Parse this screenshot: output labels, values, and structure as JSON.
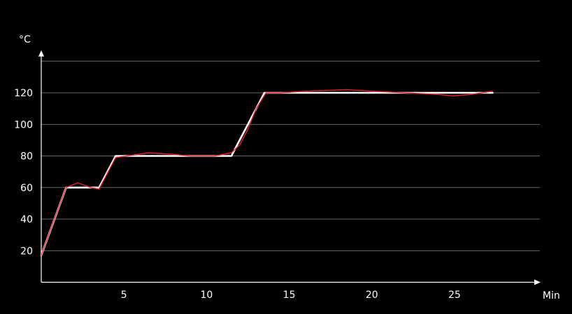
{
  "chart_data": {
    "type": "line",
    "xlabel": "Min",
    "ylabel": "°C",
    "xlim": [
      0,
      30
    ],
    "ylim": [
      0,
      140
    ],
    "x_ticks": [
      5,
      10,
      15,
      20,
      25
    ],
    "y_ticks": [
      20,
      40,
      60,
      80,
      100,
      120
    ],
    "grid": true,
    "series": [
      {
        "color": "#ffffff",
        "x": [
          0,
          1.5,
          3.5,
          4.5,
          9.5,
          11.5,
          13.5,
          27.3
        ],
        "y": [
          17,
          60,
          60,
          80,
          80,
          80,
          120,
          120
        ]
      },
      {
        "color": "#e8222d",
        "x": [
          0,
          0.8,
          1.5,
          2.2,
          3,
          3.5,
          4.5,
          6.5,
          8,
          9,
          10.5,
          11.5,
          12,
          12.5,
          13,
          13.6,
          14.5,
          16,
          18.5,
          20,
          22,
          24,
          24.9,
          26,
          27.3
        ],
        "y": [
          17,
          40,
          60,
          63,
          60,
          59,
          79,
          82,
          81,
          80,
          80,
          82,
          87,
          97,
          110,
          120,
          120,
          121,
          122,
          121,
          120,
          119,
          118,
          119,
          121
        ]
      }
    ]
  }
}
